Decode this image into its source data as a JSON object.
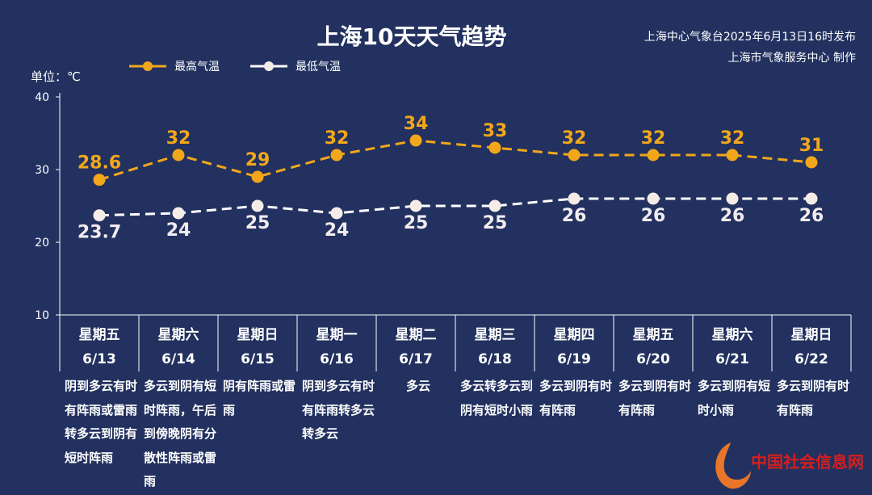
{
  "title": "上海10天天气趋势",
  "source_line1": "上海中心气象台2025年6月13日16时发布",
  "source_line2": "上海市气象服务中心 制作",
  "unit": "单位：℃",
  "watermark": "中国社会信息网",
  "colors": {
    "high": "#f2a71b",
    "low": "#ffffff",
    "bg": "#22315f"
  },
  "chart_data": {
    "type": "line",
    "title": "上海10天天气趋势",
    "ylabel": "单位：℃",
    "ylim": [
      10,
      40
    ],
    "yticks": [
      10,
      20,
      30,
      40
    ],
    "legend_position": "top-left",
    "categories": [
      "6/13",
      "6/14",
      "6/15",
      "6/16",
      "6/17",
      "6/18",
      "6/19",
      "6/20",
      "6/21",
      "6/22"
    ],
    "weekdays": [
      "星期五",
      "星期六",
      "星期日",
      "星期一",
      "星期二",
      "星期三",
      "星期四",
      "星期五",
      "星期六",
      "星期日"
    ],
    "series": [
      {
        "name": "最高气温",
        "values": [
          28.6,
          32,
          29,
          32,
          34,
          33,
          32,
          32,
          32,
          31
        ],
        "labels": [
          "28.6",
          "32",
          "29",
          "32",
          "34",
          "33",
          "32",
          "32",
          "32",
          "31"
        ]
      },
      {
        "name": "最低气温",
        "values": [
          23.7,
          24,
          25,
          24,
          25,
          25,
          26,
          26,
          26,
          26
        ],
        "labels": [
          "23.7",
          "24",
          "25",
          "24",
          "25",
          "25",
          "26",
          "26",
          "26",
          "26"
        ]
      }
    ],
    "descriptions": [
      "阴到多云有时有阵雨或雷雨转多云到阴有短时阵雨",
      "多云到阴有短时阵雨，午后到傍晚阴有分散性阵雨或雷雨",
      "阴有阵雨或雷雨",
      "阴到多云有时有阵雨转多云转多云",
      "多云",
      "多云转多云到阴有短时小雨",
      "多云到阴有时有阵雨",
      "多云到阴有时有阵雨",
      "多云到阴有短时小雨",
      "多云到阴有时有阵雨"
    ]
  }
}
